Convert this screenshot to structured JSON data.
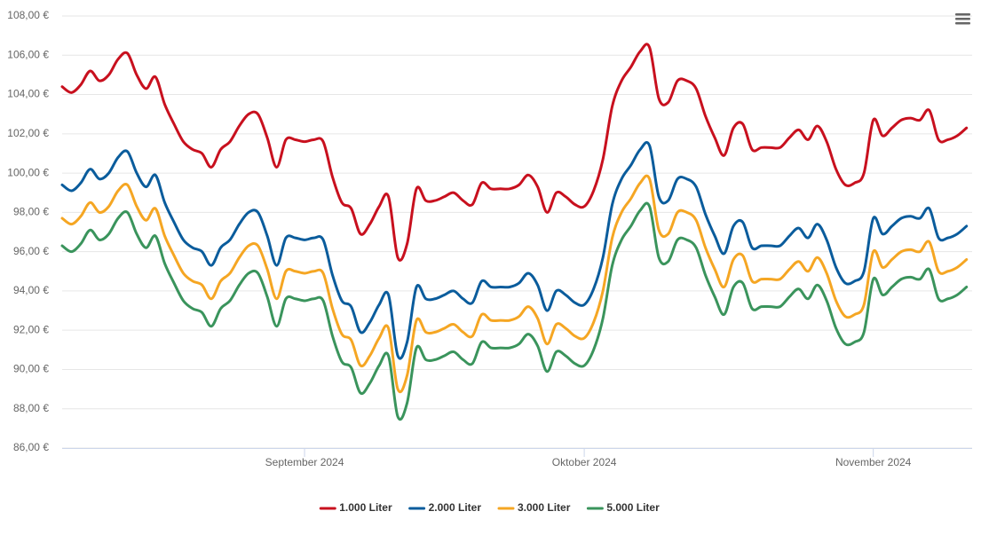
{
  "chart_data": {
    "type": "line",
    "x": [
      0,
      1,
      2,
      3,
      4,
      5,
      6,
      7,
      8,
      9,
      10,
      11,
      12,
      13,
      14,
      15,
      16,
      17,
      18,
      19,
      20,
      21,
      22,
      23,
      24,
      25,
      26,
      27,
      28,
      29,
      30,
      31,
      32,
      33,
      34,
      35,
      36,
      37,
      38,
      39,
      40,
      41,
      42,
      43,
      44,
      45,
      46,
      47,
      48,
      49,
      50,
      51,
      52,
      53,
      54,
      55,
      56,
      57,
      58,
      59,
      60,
      61,
      62,
      63,
      64,
      65,
      66,
      67,
      68,
      69,
      70,
      71,
      72,
      73,
      74,
      75,
      76,
      77,
      78,
      79,
      80,
      81,
      82,
      83,
      84,
      85,
      86,
      87,
      88,
      89,
      90,
      91,
      92,
      93,
      94,
      95,
      96,
      97
    ],
    "series": [
      {
        "name": "1.000 Liter",
        "color": "#c8101e",
        "values": [
          104.4,
          104.1,
          104.5,
          105.2,
          104.7,
          105.0,
          105.8,
          106.1,
          105.0,
          104.3,
          104.9,
          103.5,
          102.5,
          101.6,
          101.2,
          101.0,
          100.3,
          101.2,
          101.6,
          102.4,
          103.0,
          103.0,
          101.8,
          100.3,
          101.7,
          101.7,
          101.6,
          101.7,
          101.6,
          99.8,
          98.5,
          98.2,
          96.9,
          97.4,
          98.3,
          98.8,
          95.7,
          96.4,
          99.2,
          98.6,
          98.6,
          98.8,
          99.0,
          98.6,
          98.4,
          99.5,
          99.2,
          99.2,
          99.2,
          99.4,
          99.9,
          99.3,
          98.0,
          99.0,
          98.8,
          98.4,
          98.3,
          99.1,
          100.7,
          103.4,
          104.7,
          105.4,
          106.2,
          106.4,
          103.8,
          103.6,
          104.7,
          104.7,
          104.3,
          102.9,
          101.8,
          100.9,
          102.3,
          102.5,
          101.2,
          101.3,
          101.3,
          101.3,
          101.8,
          102.2,
          101.7,
          102.4,
          101.6,
          100.2,
          99.4,
          99.5,
          100.0,
          102.7,
          101.9,
          102.3,
          102.7,
          102.8,
          102.7,
          103.2,
          101.7,
          101.7,
          101.9,
          102.3
        ]
      },
      {
        "name": "2.000 Liter",
        "color": "#0a5c9c",
        "values": [
          99.4,
          99.1,
          99.5,
          100.2,
          99.7,
          100.0,
          100.8,
          101.1,
          100.0,
          99.3,
          99.9,
          98.5,
          97.5,
          96.6,
          96.2,
          96.0,
          95.3,
          96.2,
          96.6,
          97.4,
          98.0,
          98.0,
          96.8,
          95.3,
          96.7,
          96.7,
          96.6,
          96.7,
          96.6,
          94.8,
          93.5,
          93.2,
          91.9,
          92.4,
          93.3,
          93.8,
          90.7,
          91.4,
          94.2,
          93.6,
          93.6,
          93.8,
          94.0,
          93.6,
          93.4,
          94.5,
          94.2,
          94.2,
          94.2,
          94.4,
          94.9,
          94.3,
          93.0,
          94.0,
          93.8,
          93.4,
          93.3,
          94.1,
          95.7,
          98.4,
          99.7,
          100.4,
          101.2,
          101.4,
          98.8,
          98.6,
          99.7,
          99.7,
          99.3,
          97.9,
          96.8,
          95.9,
          97.3,
          97.5,
          96.2,
          96.3,
          96.3,
          96.3,
          96.8,
          97.2,
          96.7,
          97.4,
          96.6,
          95.2,
          94.4,
          94.5,
          95.0,
          97.7,
          96.9,
          97.3,
          97.7,
          97.8,
          97.7,
          98.2,
          96.7,
          96.7,
          96.9,
          97.3
        ]
      },
      {
        "name": "3.000 Liter",
        "color": "#f5a623",
        "values": [
          97.7,
          97.4,
          97.8,
          98.5,
          98.0,
          98.3,
          99.1,
          99.4,
          98.3,
          97.6,
          98.2,
          96.8,
          95.8,
          94.9,
          94.5,
          94.3,
          93.6,
          94.5,
          94.9,
          95.7,
          96.3,
          96.3,
          95.1,
          93.6,
          95.0,
          95.0,
          94.9,
          95.0,
          94.9,
          93.1,
          91.8,
          91.5,
          90.2,
          90.7,
          91.6,
          92.1,
          89.0,
          89.7,
          92.5,
          91.9,
          91.9,
          92.1,
          92.3,
          91.9,
          91.7,
          92.8,
          92.5,
          92.5,
          92.5,
          92.7,
          93.2,
          92.6,
          91.3,
          92.3,
          92.1,
          91.7,
          91.6,
          92.4,
          94.0,
          96.7,
          98.0,
          98.7,
          99.5,
          99.7,
          97.1,
          96.9,
          98.0,
          98.0,
          97.6,
          96.2,
          95.1,
          94.2,
          95.6,
          95.8,
          94.5,
          94.6,
          94.6,
          94.6,
          95.1,
          95.5,
          95.0,
          95.7,
          94.9,
          93.5,
          92.7,
          92.8,
          93.3,
          96.0,
          95.2,
          95.6,
          96.0,
          96.1,
          96.0,
          96.5,
          95.0,
          95.0,
          95.2,
          95.6
        ]
      },
      {
        "name": "5.000 Liter",
        "color": "#3a945c",
        "values": [
          96.3,
          96.0,
          96.4,
          97.1,
          96.6,
          96.9,
          97.7,
          98.0,
          96.9,
          96.2,
          96.8,
          95.4,
          94.4,
          93.5,
          93.1,
          92.9,
          92.2,
          93.1,
          93.5,
          94.3,
          94.9,
          94.9,
          93.7,
          92.2,
          93.6,
          93.6,
          93.5,
          93.6,
          93.5,
          91.7,
          90.4,
          90.1,
          88.8,
          89.3,
          90.2,
          90.7,
          87.6,
          88.3,
          91.1,
          90.5,
          90.5,
          90.7,
          90.9,
          90.5,
          90.3,
          91.4,
          91.1,
          91.1,
          91.1,
          91.3,
          91.8,
          91.2,
          89.9,
          90.9,
          90.7,
          90.3,
          90.2,
          91.0,
          92.6,
          95.3,
          96.6,
          97.3,
          98.1,
          98.3,
          95.7,
          95.5,
          96.6,
          96.6,
          96.2,
          94.8,
          93.7,
          92.8,
          94.2,
          94.4,
          93.1,
          93.2,
          93.2,
          93.2,
          93.7,
          94.1,
          93.6,
          94.3,
          93.5,
          92.1,
          91.3,
          91.4,
          91.9,
          94.6,
          93.8,
          94.2,
          94.6,
          94.7,
          94.6,
          95.1,
          93.6,
          93.6,
          93.8,
          94.2
        ]
      }
    ],
    "xlim": [
      0,
      97.6
    ],
    "xticks": [
      {
        "value": 26,
        "label": "September 2024"
      },
      {
        "value": 56,
        "label": "Oktober 2024"
      },
      {
        "value": 87,
        "label": "November 2024"
      }
    ],
    "ylim": [
      86,
      108
    ],
    "yticks": [
      {
        "value": 86,
        "label": "86,00 €"
      },
      {
        "value": 88,
        "label": "88,00 €"
      },
      {
        "value": 90,
        "label": "90,00 €"
      },
      {
        "value": 92,
        "label": "92,00 €"
      },
      {
        "value": 94,
        "label": "94,00 €"
      },
      {
        "value": 96,
        "label": "96,00 €"
      },
      {
        "value": 98,
        "label": "98,00 €"
      },
      {
        "value": 100,
        "label": "100,00 €"
      },
      {
        "value": 102,
        "label": "102,00 €"
      },
      {
        "value": 104,
        "label": "104,00 €"
      },
      {
        "value": 106,
        "label": "106,00 €"
      },
      {
        "value": 108,
        "label": "108,00 €"
      }
    ],
    "grid": true,
    "legend": "bottom"
  }
}
